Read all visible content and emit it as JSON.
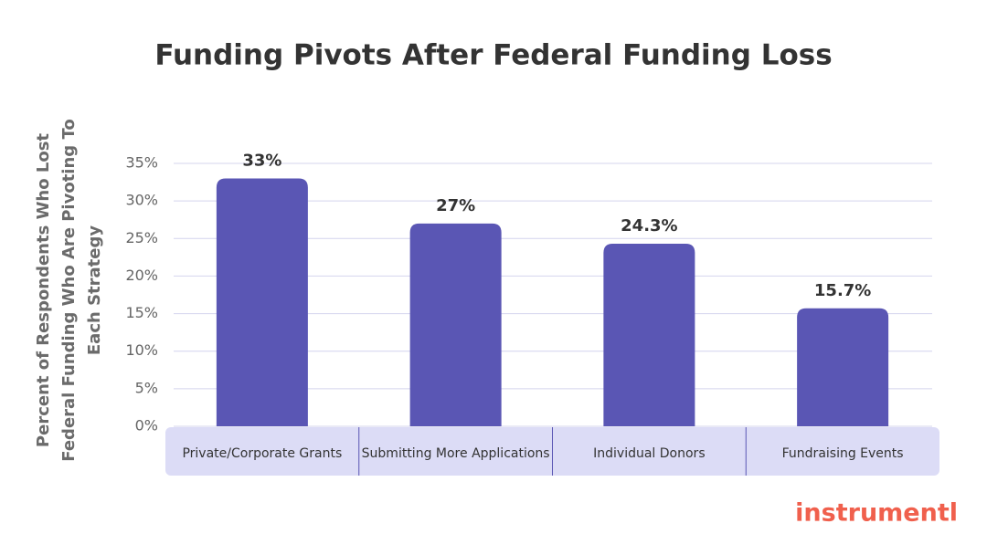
{
  "chart_data": {
    "type": "bar",
    "title": "Funding Pivots After Federal Funding Loss",
    "y_label": "Percent of Respondents Who Lost Federal Funding Who Are Pivoting To Each Strategy",
    "categories": [
      "Private/Corporate Grants",
      "Submitting More Applications",
      "Individual Donors",
      "Fundraising Events"
    ],
    "values": [
      33,
      27,
      24.3,
      15.7
    ],
    "value_labels": [
      "33%",
      "27%",
      "24.3%",
      "15.7%"
    ],
    "color": "#5a56b4",
    "ylim": [
      0,
      35
    ],
    "yticks": [
      {
        "value": 0,
        "label": "0%"
      },
      {
        "value": 5,
        "label": "5%"
      },
      {
        "value": 10,
        "label": "10%"
      },
      {
        "value": 15,
        "label": "15%"
      },
      {
        "value": 20,
        "label": "20%"
      },
      {
        "value": 25,
        "label": "25%"
      },
      {
        "value": 30,
        "label": "30%"
      },
      {
        "value": 35,
        "label": "35%"
      }
    ],
    "grid": true,
    "logo": "instrumentl"
  }
}
